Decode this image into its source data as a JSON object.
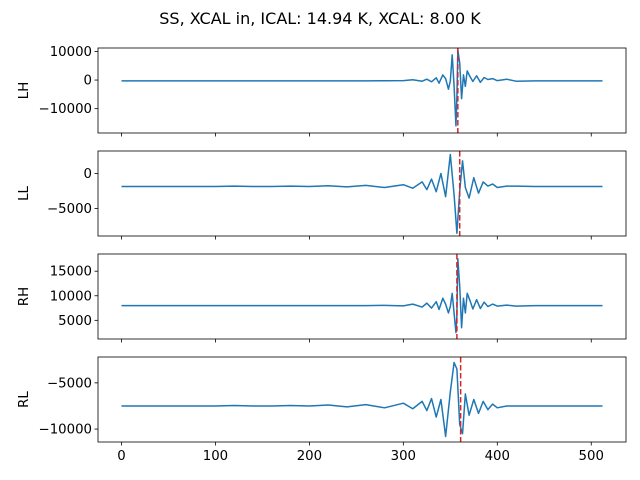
{
  "chart_data": {
    "title": "SS, XCAL in, ICAL: 14.94 K, XCAL: 8.00 K",
    "type": "line",
    "xlim": [
      -25,
      537
    ],
    "xticks": [
      0,
      100,
      200,
      300,
      400,
      500
    ],
    "xtick_labels": [
      "0",
      "100",
      "200",
      "300",
      "400",
      "500"
    ],
    "series_color": "#1f77b4",
    "marker_color": "#d62728",
    "subplots": [
      {
        "ylabel": "LH",
        "ylim": [
          -18500,
          11200
        ],
        "yticks": [
          -10000,
          0,
          10000
        ],
        "ytick_labels": [
          "−10000",
          "0",
          "10000"
        ],
        "marker_x": 358,
        "x": [
          0,
          20,
          40,
          60,
          80,
          100,
          120,
          140,
          160,
          180,
          200,
          220,
          240,
          260,
          280,
          300,
          310,
          320,
          325,
          330,
          335,
          338,
          342,
          345,
          348,
          350,
          352,
          354,
          356,
          357,
          358,
          360,
          362,
          364,
          366,
          368,
          371,
          374,
          378,
          382,
          386,
          390,
          395,
          400,
          410,
          420,
          440,
          460,
          480,
          500,
          512
        ],
        "values": [
          -300,
          -300,
          -300,
          -300,
          -300,
          -300,
          -300,
          -300,
          -300,
          -300,
          -300,
          -300,
          -300,
          -300,
          -250,
          -200,
          100,
          -400,
          300,
          -600,
          800,
          -1100,
          1800,
          500,
          -3200,
          -400,
          8800,
          -2000,
          -16000,
          -6000,
          10500,
          6000,
          -6500,
          1800,
          -2200,
          3200,
          1200,
          -500,
          1500,
          -800,
          900,
          200,
          500,
          -200,
          300,
          -400,
          -300,
          -300,
          -300,
          -300,
          -300
        ]
      },
      {
        "ylabel": "LL",
        "ylim": [
          -8900,
          3200
        ],
        "yticks": [
          -5000,
          0
        ],
        "ytick_labels": [
          "−5000",
          "0"
        ],
        "marker_x": 360,
        "x": [
          0,
          20,
          40,
          60,
          80,
          100,
          120,
          140,
          160,
          180,
          200,
          220,
          240,
          260,
          280,
          300,
          310,
          320,
          325,
          330,
          335,
          340,
          345,
          350,
          354,
          357,
          360,
          363,
          366,
          370,
          375,
          380,
          385,
          390,
          395,
          400,
          410,
          420,
          440,
          460,
          480,
          500,
          512
        ],
        "values": [
          -1850,
          -1850,
          -1850,
          -1850,
          -1850,
          -1850,
          -1800,
          -1850,
          -1850,
          -1800,
          -1850,
          -1750,
          -1900,
          -1700,
          -2000,
          -1600,
          -2100,
          -1200,
          -2300,
          -800,
          -2600,
          0,
          -3300,
          2700,
          -3000,
          -8500,
          -2500,
          1800,
          -2000,
          -3500,
          -600,
          -2800,
          -1200,
          -1800,
          -1500,
          -2000,
          -1800,
          -1800,
          -1850,
          -1850,
          -1850,
          -1850,
          -1850
        ]
      },
      {
        "ylabel": "RH",
        "ylim": [
          1200,
          18500
        ],
        "yticks": [
          5000,
          10000,
          15000
        ],
        "ytick_labels": [
          "5000",
          "10000",
          "15000"
        ],
        "marker_x": 357,
        "x": [
          0,
          20,
          40,
          60,
          80,
          100,
          120,
          140,
          160,
          180,
          200,
          220,
          240,
          260,
          280,
          300,
          310,
          320,
          325,
          330,
          335,
          338,
          342,
          345,
          348,
          350,
          352,
          354,
          356,
          357,
          358,
          360,
          362,
          364,
          366,
          368,
          371,
          374,
          378,
          382,
          386,
          390,
          395,
          400,
          410,
          420,
          440,
          460,
          480,
          500,
          512
        ],
        "values": [
          8000,
          8000,
          8000,
          8000,
          8000,
          8000,
          8000,
          8000,
          8000,
          8000,
          8000,
          8000,
          8000,
          8000,
          8050,
          7950,
          8300,
          7700,
          8500,
          7500,
          8800,
          7200,
          9500,
          8300,
          6500,
          7800,
          10500,
          6500,
          2500,
          6000,
          17500,
          12000,
          3500,
          9500,
          6500,
          10500,
          9000,
          7300,
          9200,
          7400,
          8700,
          7800,
          8300,
          7900,
          8100,
          7900,
          8000,
          8000,
          8000,
          8000,
          8000
        ]
      },
      {
        "ylabel": "RL",
        "ylim": [
          -11400,
          -2200
        ],
        "yticks": [
          -10000,
          -5000
        ],
        "ytick_labels": [
          "−10000",
          "−5000"
        ],
        "marker_x": 361,
        "x": [
          0,
          20,
          40,
          60,
          80,
          100,
          120,
          140,
          160,
          180,
          200,
          220,
          240,
          260,
          280,
          300,
          310,
          320,
          325,
          330,
          335,
          340,
          345,
          350,
          354,
          357,
          360,
          363,
          366,
          370,
          375,
          380,
          385,
          390,
          395,
          400,
          410,
          420,
          440,
          460,
          480,
          500,
          512
        ],
        "values": [
          -7500,
          -7500,
          -7500,
          -7500,
          -7500,
          -7500,
          -7450,
          -7500,
          -7500,
          -7450,
          -7500,
          -7400,
          -7600,
          -7350,
          -7700,
          -7200,
          -7800,
          -7000,
          -8000,
          -6700,
          -8700,
          -6800,
          -10800,
          -6000,
          -2800,
          -3500,
          -9500,
          -10500,
          -6200,
          -8500,
          -6800,
          -8300,
          -7000,
          -7900,
          -7300,
          -7700,
          -7500,
          -7500,
          -7500,
          -7500,
          -7500,
          -7500,
          -7500
        ]
      }
    ]
  }
}
